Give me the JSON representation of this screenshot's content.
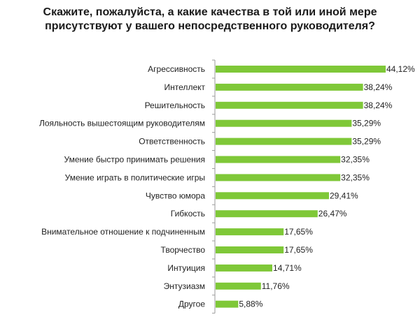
{
  "chart_data": {
    "type": "bar",
    "orientation": "horizontal",
    "title": "Скажите, пожалуйста, а какие качества в той или иной мере присутствуют у вашего непосредственного руководителя?",
    "categories": [
      "Агрессивность",
      "Интеллект",
      "Решительность",
      "Лояльность вышестоящим руководителям",
      "Ответственность",
      "Умение быстро принимать решения",
      "Умение играть в политические игры",
      "Чувство юмора",
      "Гибкость",
      "Внимательное отношение к подчиненным",
      "Творчество",
      "Интуиция",
      "Энтузиазм",
      "Другое"
    ],
    "values": [
      44.12,
      38.24,
      38.24,
      35.29,
      35.29,
      32.35,
      32.35,
      29.41,
      26.47,
      17.65,
      17.65,
      14.71,
      11.76,
      5.88
    ],
    "value_labels": [
      "44,12%",
      "38,24%",
      "38,24%",
      "35,29%",
      "35,29%",
      "32,35%",
      "32,35%",
      "29,41%",
      "26,47%",
      "17,65%",
      "17,65%",
      "14,71%",
      "11,76%",
      "5,88%"
    ],
    "xlim": [
      0,
      44.12
    ],
    "xlabel": "",
    "ylabel": "",
    "grid": false,
    "legend": "none",
    "bar_color": "#7fc838",
    "axis_color": "#9a9a9a"
  }
}
